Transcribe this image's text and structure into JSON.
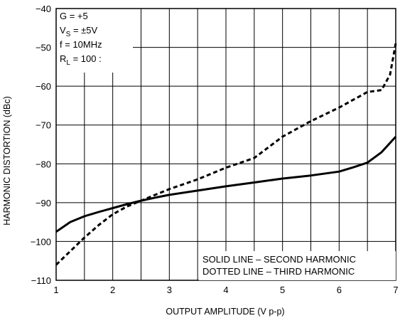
{
  "chart_data": {
    "type": "line",
    "xlabel": "OUTPUT AMPLITUDE (V p-p)",
    "ylabel": "HARMONIC DISTORTION (dBc)",
    "xlim": [
      1,
      7
    ],
    "ylim": [
      -110,
      -40
    ],
    "x_ticks": [
      "1",
      "2",
      "3",
      "4",
      "5",
      "6",
      "7"
    ],
    "y_ticks": [
      "−40",
      "−50",
      "−60",
      "−70",
      "−80",
      "−90",
      "−100",
      "−110"
    ],
    "grid": true,
    "conditions": [
      {
        "label": "G = +5"
      },
      {
        "label": "V",
        "sub": "S",
        "rest": " = ±5V"
      },
      {
        "label": "f = 10MHz"
      },
      {
        "label": "R",
        "sub": "L",
        "rest": " = 100 :"
      }
    ],
    "legend": {
      "placement": "bottom-right",
      "lines": [
        "SOLID LINE – SECOND HARMONIC",
        "DOTTED LINE – THIRD HARMONIC"
      ]
    },
    "series": [
      {
        "style": "solid",
        "x": [
          1.0,
          1.25,
          1.5,
          1.75,
          2.0,
          2.25,
          2.5,
          2.75,
          3.0,
          3.5,
          4.0,
          4.5,
          5.0,
          5.5,
          6.0,
          6.25,
          6.5,
          6.75,
          7.0
        ],
        "y": [
          -97.5,
          -95.0,
          -93.5,
          -92.4,
          -91.4,
          -90.4,
          -89.5,
          -88.7,
          -88.0,
          -86.9,
          -85.8,
          -84.8,
          -83.8,
          -83.0,
          -82.0,
          -80.9,
          -79.7,
          -77.0,
          -73.0
        ]
      },
      {
        "style": "dotted",
        "x": [
          1.0,
          1.25,
          1.5,
          1.75,
          2.0,
          2.25,
          2.5,
          2.75,
          3.0,
          3.5,
          4.0,
          4.5,
          5.0,
          5.5,
          6.0,
          6.25,
          6.5,
          6.75,
          6.9,
          7.0
        ],
        "y": [
          -106.0,
          -102.5,
          -99.0,
          -95.8,
          -93.0,
          -91.0,
          -89.5,
          -88.0,
          -86.5,
          -84.0,
          -81.0,
          -78.5,
          -73.0,
          -69.0,
          -65.5,
          -63.5,
          -61.5,
          -61.0,
          -57.0,
          -49.0
        ]
      }
    ]
  }
}
